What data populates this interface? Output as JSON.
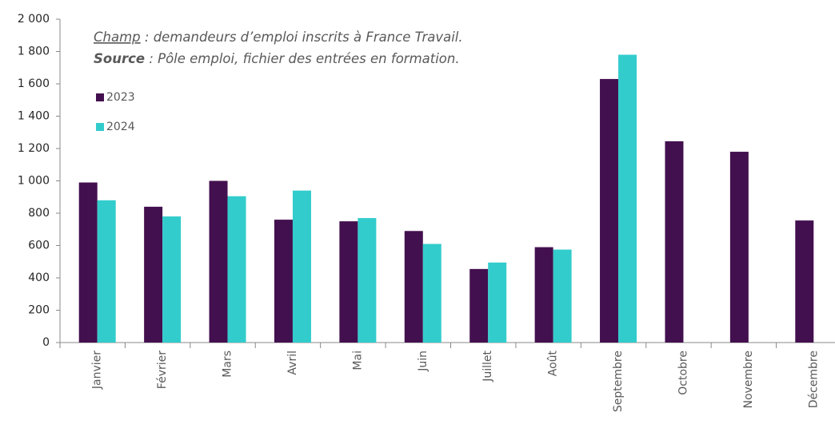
{
  "chart_data": {
    "type": "bar",
    "annotations": [
      {
        "term": "Champ",
        "text": " : demandeurs d’emploi inscrits à France Travail."
      },
      {
        "term": "Source",
        "text": " : Pôle emploi, fichier des entrées en formation."
      }
    ],
    "categories": [
      "Janvier",
      "Février",
      "Mars",
      "Avril",
      "Mai",
      "Juin",
      "Juillet",
      "Août",
      "Septembre",
      "Octobre",
      "Novembre",
      "Décembre"
    ],
    "series": [
      {
        "name": "2023",
        "color": "#43104f",
        "values": [
          990,
          840,
          1000,
          760,
          750,
          690,
          455,
          590,
          1630,
          1245,
          1180,
          755
        ]
      },
      {
        "name": "2024",
        "color": "#33cccc",
        "values": [
          880,
          780,
          905,
          940,
          770,
          610,
          495,
          575,
          1780,
          null,
          null,
          null
        ]
      }
    ],
    "ylim": [
      0,
      2000
    ],
    "yticks": [
      0,
      {
        "value": 200,
        "label": "200"
      },
      {
        "value": 400,
        "label": "400"
      },
      {
        "value": 600,
        "label": "600"
      },
      {
        "value": 800,
        "label": "800"
      },
      {
        "value": 1000,
        "label": "1 000"
      },
      {
        "value": 1200,
        "label": "1 200"
      },
      {
        "value": 1400,
        "label": "1 400"
      },
      {
        "value": 1600,
        "label": "1 600"
      },
      {
        "value": 1800,
        "label": "1 800"
      },
      {
        "value": 2000,
        "label": "2 000"
      }
    ],
    "legend": "top-left"
  }
}
